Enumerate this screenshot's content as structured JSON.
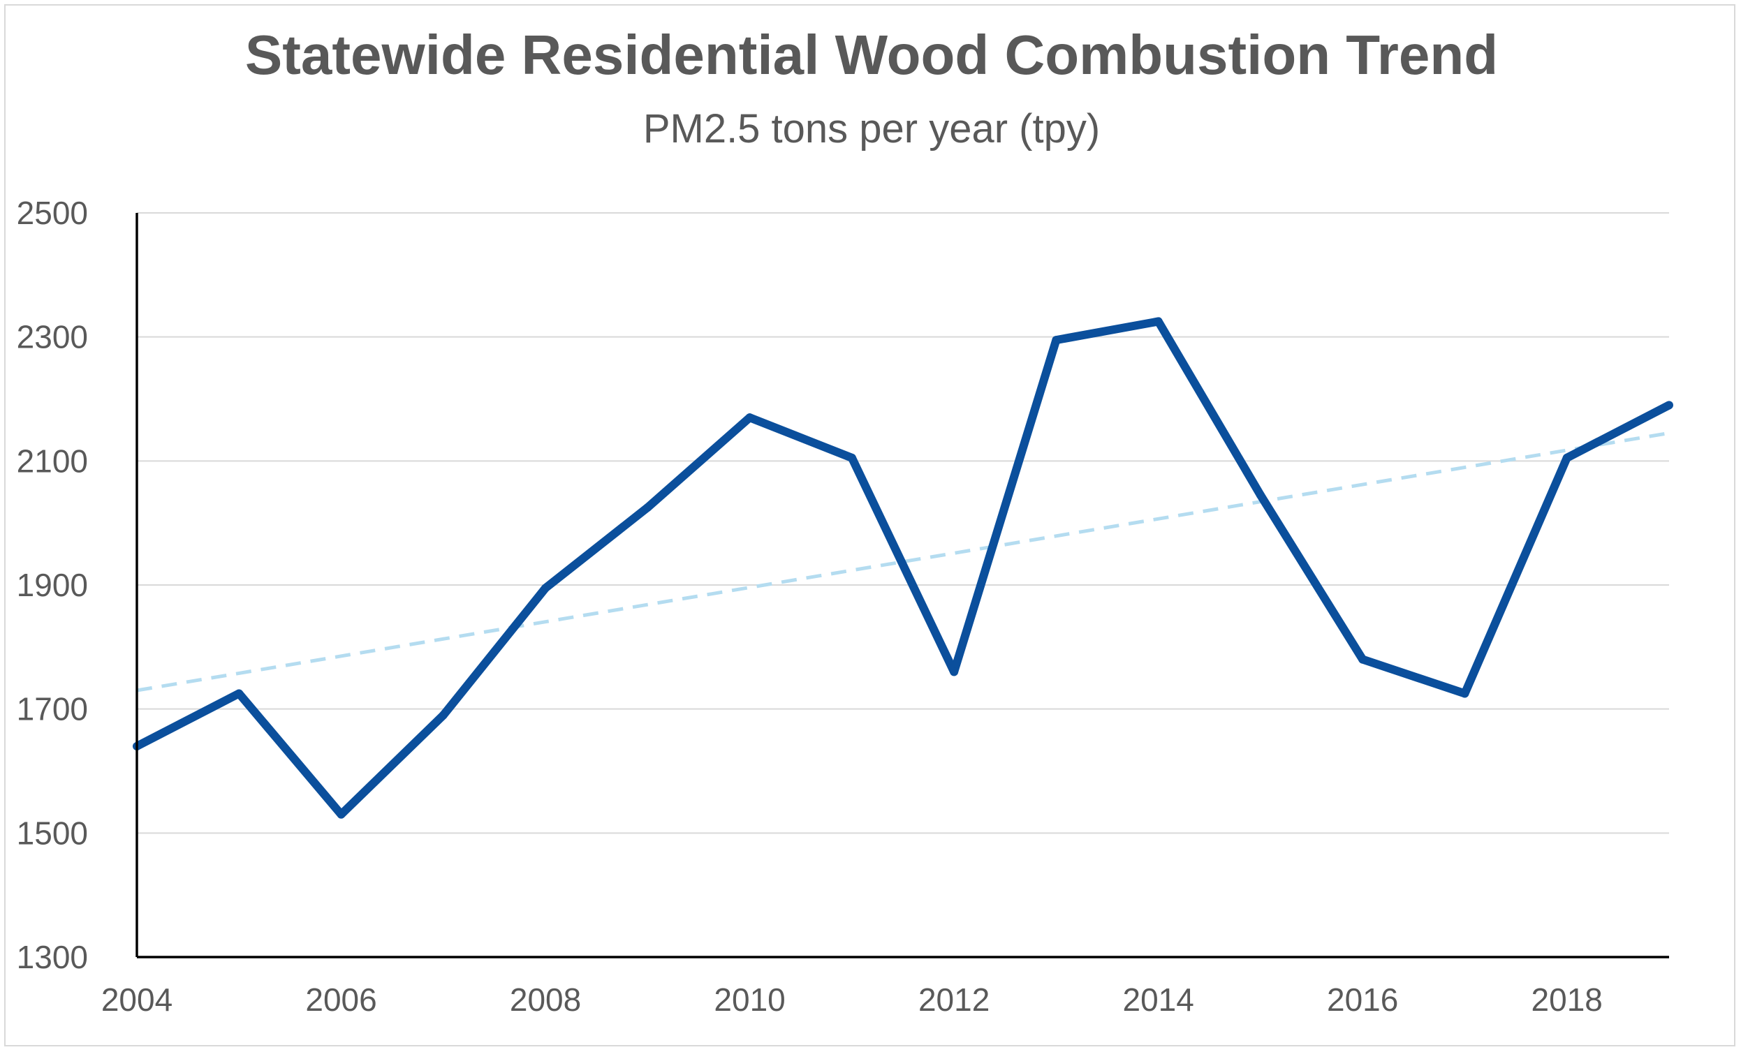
{
  "chart_data": {
    "type": "line",
    "title": "Statewide Residential Wood Combustion Trend",
    "subtitle": "PM2.5 tons per year (tpy)",
    "xlabel": "",
    "ylabel": "",
    "x": [
      2004,
      2005,
      2006,
      2007,
      2008,
      2009,
      2010,
      2011,
      2012,
      2013,
      2014,
      2015,
      2016,
      2017,
      2018,
      2019
    ],
    "series": [
      {
        "values": [
          1640,
          1725,
          1530,
          1690,
          1895,
          2025,
          2170,
          2105,
          1760,
          2295,
          2325,
          2045,
          1780,
          1725,
          2105,
          2190
        ]
      }
    ],
    "trendline": {
      "style": "dashed",
      "start": [
        2004,
        1730
      ],
      "end": [
        2019,
        2145
      ]
    },
    "xlim": [
      2004,
      2019
    ],
    "ylim": [
      1300,
      2500
    ],
    "x_ticks": [
      "2004",
      "2006",
      "2008",
      "2010",
      "2012",
      "2014",
      "2016",
      "2018"
    ],
    "y_ticks": [
      "1300",
      "1500",
      "1700",
      "1900",
      "2100",
      "2300",
      "2500"
    ],
    "grid": "horizontal",
    "legend": "none",
    "colors": {
      "series": "#0b4f9c",
      "trendline": "#b4dcf0",
      "text": "#595959",
      "gridline": "#d9d9d9",
      "axis": "#000000"
    }
  }
}
